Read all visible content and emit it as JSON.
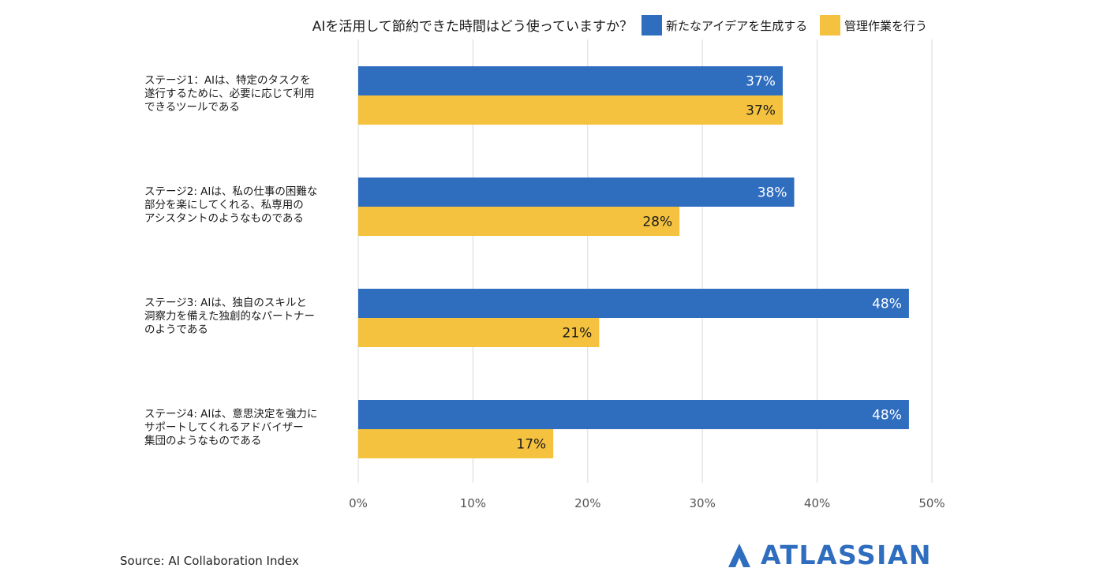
{
  "chart_data": {
    "type": "bar",
    "orientation": "horizontal",
    "title": "AIを活用して節約できた時間はどう使っていますか？",
    "categories": [
      [
        "ステージ1：AIは、特定のタスクを",
        "遂行するために、必要に応じて利用",
        "できるツールである"
      ],
      [
        "ステージ2: AIは、私の仕事の困難な",
        "部分を楽にしてくれる、私専用の",
        "アシスタントのようなものである"
      ],
      [
        "ステージ3: AIは、独自のスキルと",
        "洞察力を備えた独創的なパートナー",
        "のようである"
      ],
      [
        "ステージ4: AIは、意思決定を強力に",
        "サポートしてくれるアドバイザー",
        "集団のようなものである"
      ]
    ],
    "series": [
      {
        "name": "新たなアイデアを生成する",
        "color": "#2F6DBF",
        "label_color": "#ffffff",
        "values": [
          37,
          38,
          48,
          48
        ]
      },
      {
        "name": "管理作業を行う",
        "color": "#F4C23E",
        "label_color": "#1a1a1a",
        "values": [
          37,
          28,
          21,
          17
        ]
      }
    ],
    "x_ticks": [
      "0%",
      "10%",
      "20%",
      "30%",
      "40%",
      "50%"
    ],
    "xlim": [
      0,
      50
    ],
    "value_suffix": "%",
    "grid": true,
    "legend_position": "top-right"
  },
  "source": "Source: AI Collaboration Index",
  "logo": {
    "text": "ATLASSIAN",
    "color": "#2F6DBF",
    "icon": "atlassian-logo-icon"
  }
}
